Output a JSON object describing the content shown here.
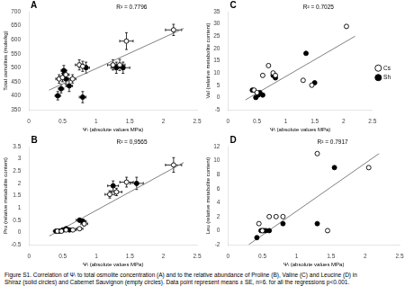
{
  "chart_data": [
    {
      "type": "scatter",
      "title": "A",
      "annotations": [
        "R² = 0.7796"
      ],
      "xlabel": "Ψₗ (absolute values MPa)",
      "ylabel": "Total osmolites (mole/kg)",
      "xlim": [
        0,
        2.5
      ],
      "xticks": [
        0,
        0.5,
        1,
        1.5,
        2,
        2.5
      ],
      "ylim": [
        350,
        700
      ],
      "yticks": [
        350,
        400,
        450,
        500,
        550,
        600,
        650,
        700
      ],
      "grid": false,
      "series": [
        {
          "name": "Cs",
          "marker": "open-circle",
          "color": "black",
          "x": [
            0.45,
            0.5,
            0.55,
            0.65,
            0.75,
            0.8,
            1.25,
            1.35,
            1.45,
            2.15
          ],
          "values": [
            460,
            465,
            475,
            460,
            510,
            505,
            510,
            510,
            595,
            635
          ],
          "xerr": [
            0.05,
            0.05,
            0.05,
            0.05,
            0.06,
            0.06,
            0.08,
            0.08,
            0.1,
            0.12
          ],
          "yerr": [
            15,
            15,
            15,
            15,
            18,
            18,
            18,
            20,
            30,
            20
          ]
        },
        {
          "name": "Sh",
          "marker": "filled-circle",
          "color": "black",
          "x": [
            0.43,
            0.48,
            0.52,
            0.55,
            0.6,
            0.8,
            0.85,
            1.3,
            1.4
          ],
          "values": [
            400,
            425,
            490,
            460,
            435,
            395,
            500,
            500,
            500
          ],
          "xerr": [
            0.04,
            0.04,
            0.04,
            0.04,
            0.05,
            0.05,
            0.05,
            0.08,
            0.1
          ],
          "yerr": [
            15,
            15,
            18,
            18,
            20,
            20,
            20,
            20,
            20
          ]
        },
        {
          "type": "line",
          "color": "gray",
          "x": [
            0.3,
            2.3
          ],
          "values": [
            420,
            640
          ]
        }
      ]
    },
    {
      "type": "scatter",
      "title": "B",
      "annotations": [
        "R² = 0,9565"
      ],
      "xlabel": "Ψₗ (absolute values MPa)",
      "ylabel": "Pro (relative metabolite content)",
      "xlim": [
        0,
        2.5
      ],
      "xticks": [
        0,
        0.5,
        1,
        1.5,
        2,
        2.5
      ],
      "ylim": [
        -0.5,
        3.5
      ],
      "yticks": [
        -0.5,
        0,
        0.5,
        1,
        1.5,
        2,
        2.5,
        3,
        3.5
      ],
      "grid": false,
      "series": [
        {
          "name": "Cs",
          "marker": "open-circle",
          "color": "black",
          "x": [
            0.42,
            0.48,
            0.55,
            0.65,
            0.75,
            0.82,
            1.2,
            1.3,
            1.45,
            2.15
          ],
          "values": [
            0.05,
            0.05,
            0.1,
            0.1,
            0.15,
            0.35,
            1.55,
            1.65,
            2.05,
            2.75
          ],
          "xerr": [
            0.04,
            0.04,
            0.04,
            0.05,
            0.05,
            0.05,
            0.07,
            0.08,
            0.1,
            0.12
          ],
          "yerr": [
            0.02,
            0.02,
            0.03,
            0.03,
            0.05,
            0.08,
            0.15,
            0.15,
            0.2,
            0.3
          ]
        },
        {
          "name": "Sh",
          "marker": "filled-circle",
          "color": "black",
          "x": [
            0.4,
            0.45,
            0.5,
            0.55,
            0.6,
            0.75,
            0.8,
            1.25,
            1.6
          ],
          "values": [
            0.05,
            0.05,
            0.1,
            0.15,
            0.1,
            0.5,
            0.45,
            1.9,
            2.0
          ],
          "xerr": [
            0.04,
            0.04,
            0.04,
            0.04,
            0.05,
            0.05,
            0.05,
            0.08,
            0.1
          ],
          "yerr": [
            0.02,
            0.02,
            0.03,
            0.04,
            0.04,
            0.08,
            0.08,
            0.2,
            0.25
          ]
        },
        {
          "type": "line",
          "color": "gray",
          "x": [
            0.3,
            2.3
          ],
          "values": [
            -0.15,
            2.85
          ]
        }
      ]
    },
    {
      "type": "scatter",
      "title": "C",
      "annotations": [
        "R² = 0.7025"
      ],
      "xlabel": "Ψₗ (absolute values MPa)",
      "ylabel": "Val (relative metabolite content)",
      "xlim": [
        0,
        2.5
      ],
      "xticks": [
        0,
        0.5,
        1,
        1.5,
        2,
        2.5
      ],
      "ylim": [
        -5,
        35
      ],
      "yticks": [
        -5,
        0,
        5,
        10,
        15,
        20,
        25,
        30,
        35
      ],
      "grid": false,
      "legend": "right",
      "series": [
        {
          "name": "Cs",
          "marker": "open-circle",
          "color": "black",
          "x": [
            0.45,
            0.5,
            0.6,
            0.7,
            0.78,
            0.82,
            1.3,
            1.45,
            2.05
          ],
          "values": [
            3,
            2,
            9,
            13,
            10,
            9,
            7,
            5,
            29
          ]
        },
        {
          "name": "Sh",
          "marker": "filled-circle",
          "color": "black",
          "x": [
            0.42,
            0.48,
            0.52,
            0.55,
            0.6,
            0.78,
            0.82,
            1.35,
            1.5
          ],
          "values": [
            3,
            0,
            1,
            2,
            1,
            9,
            8,
            18,
            6
          ]
        },
        {
          "type": "line",
          "color": "gray",
          "x": [
            0.3,
            2.2
          ],
          "values": [
            -1,
            25
          ]
        }
      ]
    },
    {
      "type": "scatter",
      "title": "D",
      "annotations": [
        "R² = 0.7917"
      ],
      "xlabel": "Ψₗ (absolute values MPa)",
      "ylabel": "Leu (relative metabolite content)",
      "xlim": [
        0,
        2.5
      ],
      "xticks": [
        0,
        0.5,
        1,
        1.5,
        2,
        2.5
      ],
      "ylim": [
        -2,
        12
      ],
      "yticks": [
        -2,
        0,
        2,
        4,
        6,
        8,
        10,
        12
      ],
      "grid": false,
      "series": [
        {
          "name": "Cs",
          "marker": "open-circle",
          "color": "black",
          "x": [
            0.45,
            0.5,
            0.6,
            0.7,
            0.8,
            1.3,
            1.45,
            2.05
          ],
          "values": [
            1,
            0,
            2,
            2,
            2,
            11,
            0,
            9
          ]
        },
        {
          "name": "Sh",
          "marker": "filled-circle",
          "color": "black",
          "x": [
            0.42,
            0.48,
            0.52,
            0.55,
            0.6,
            0.8,
            1.3,
            1.55
          ],
          "values": [
            -1,
            0,
            0,
            0,
            0,
            1,
            1,
            9
          ]
        },
        {
          "type": "line",
          "color": "gray",
          "x": [
            0.3,
            2.2
          ],
          "values": [
            -2,
            11
          ]
        }
      ]
    }
  ],
  "caption": [
    "Figure S1. Correlation of Ψₗ to total osmolite concentration (A) and to the relative abundance of Proline (B), Valine (C) and Leucine (D) in",
    "Shiraz (solid circles) and Cabernet Sauvignon (empty circles). Data point represent means ± SE, n=6. for all the regressions p<0.001."
  ]
}
